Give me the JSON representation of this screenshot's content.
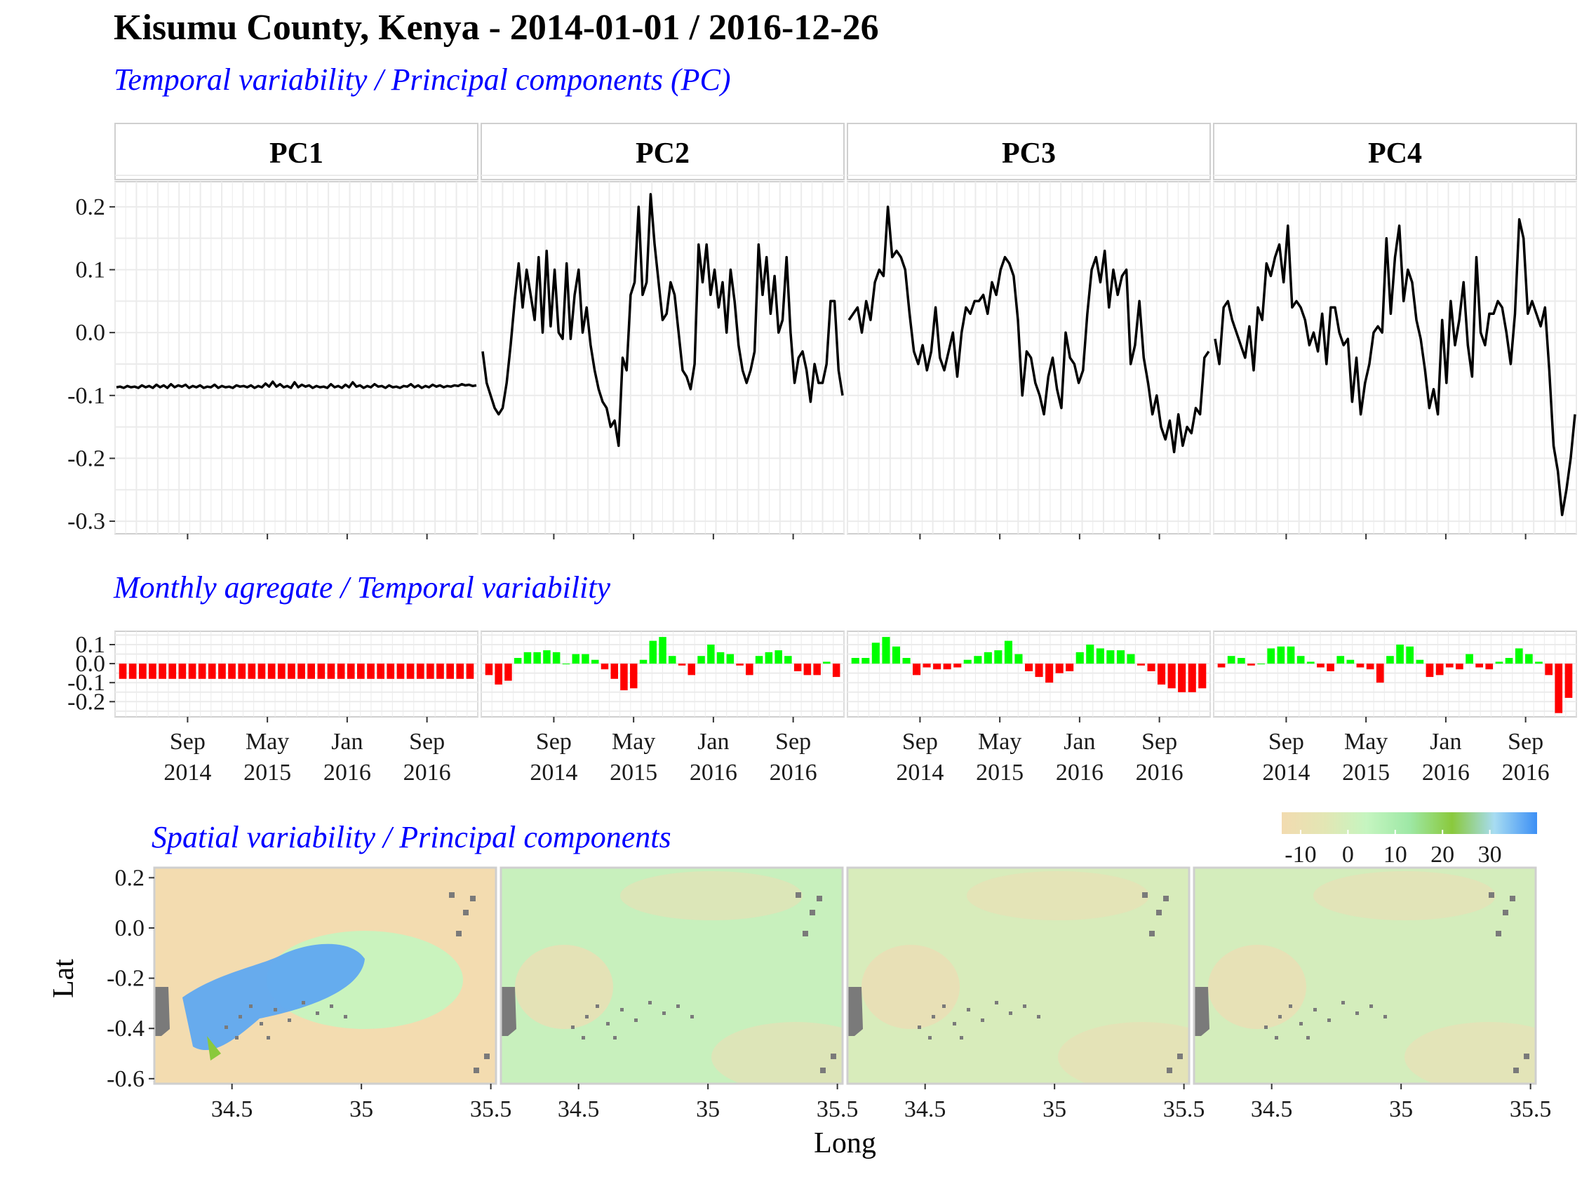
{
  "title": "Kisumu County, Kenya - 2014-01-01 / 2016-12-26",
  "subtitles": {
    "temporal": "Temporal variability / Principal components (PC)",
    "monthly": "Monthly agregate / Temporal variability",
    "spatial": "Spatial variability / Principal components"
  },
  "colors": {
    "line": "#000000",
    "bar_positive": "#00ff00",
    "bar_negative": "#ff0000",
    "subtitle": "#0000ff",
    "nodata": "#7a7a7a",
    "scale": [
      "#f2dbb0",
      "#e3e6b4",
      "#c5f5c0",
      "#9ee8a6",
      "#8ac93c",
      "#a7dcf2",
      "#3c8ff5"
    ]
  },
  "chart_data": [
    {
      "type": "line",
      "name": "temporal",
      "panels": [
        "PC1",
        "PC2",
        "PC3",
        "PC4"
      ],
      "ylim": [
        -0.32,
        0.24
      ],
      "yticks": [
        "0.2",
        "0.1",
        "0.0",
        "-0.1",
        "-0.2",
        "-0.3"
      ],
      "ytick_values": [
        0.2,
        0.1,
        0.0,
        -0.1,
        -0.2,
        -0.3
      ],
      "series": [
        {
          "panel": "PC1",
          "values": [
            -0.087,
            -0.086,
            -0.088,
            -0.085,
            -0.087,
            -0.086,
            -0.088,
            -0.084,
            -0.087,
            -0.085,
            -0.088,
            -0.083,
            -0.087,
            -0.084,
            -0.088,
            -0.082,
            -0.087,
            -0.084,
            -0.086,
            -0.083,
            -0.088,
            -0.085,
            -0.087,
            -0.084,
            -0.088,
            -0.086,
            -0.087,
            -0.083,
            -0.088,
            -0.085,
            -0.087,
            -0.086,
            -0.088,
            -0.084,
            -0.086,
            -0.085,
            -0.087,
            -0.084,
            -0.088,
            -0.085,
            -0.087,
            -0.081,
            -0.086,
            -0.078,
            -0.086,
            -0.082,
            -0.087,
            -0.085,
            -0.088,
            -0.079,
            -0.087,
            -0.083,
            -0.086,
            -0.084,
            -0.088,
            -0.085,
            -0.087,
            -0.086,
            -0.088,
            -0.082,
            -0.087,
            -0.085,
            -0.088,
            -0.083,
            -0.087,
            -0.079,
            -0.086,
            -0.084,
            -0.088,
            -0.085,
            -0.087,
            -0.082,
            -0.086,
            -0.085,
            -0.088,
            -0.084,
            -0.087,
            -0.086,
            -0.088,
            -0.085,
            -0.086,
            -0.082,
            -0.087,
            -0.084,
            -0.088,
            -0.085,
            -0.087,
            -0.083,
            -0.086,
            -0.084,
            -0.087,
            -0.085,
            -0.086,
            -0.084,
            -0.085,
            -0.082,
            -0.084,
            -0.083,
            -0.085,
            -0.084
          ]
        },
        {
          "panel": "PC2",
          "values": [
            -0.03,
            -0.08,
            -0.1,
            -0.12,
            -0.13,
            -0.12,
            -0.08,
            -0.02,
            0.05,
            0.11,
            0.04,
            0.1,
            0.06,
            0.02,
            0.12,
            0.0,
            0.13,
            0.01,
            0.1,
            0.0,
            -0.01,
            0.11,
            -0.01,
            0.06,
            0.1,
            0.0,
            0.04,
            -0.02,
            -0.06,
            -0.09,
            -0.11,
            -0.12,
            -0.15,
            -0.14,
            -0.18,
            -0.04,
            -0.06,
            0.06,
            0.08,
            0.2,
            0.06,
            0.08,
            0.22,
            0.14,
            0.08,
            0.02,
            0.03,
            0.08,
            0.06,
            0.0,
            -0.06,
            -0.07,
            -0.09,
            -0.05,
            0.14,
            0.08,
            0.14,
            0.06,
            0.1,
            0.04,
            0.08,
            0.0,
            0.1,
            0.05,
            -0.02,
            -0.06,
            -0.08,
            -0.06,
            -0.03,
            0.14,
            0.06,
            0.12,
            0.03,
            0.09,
            0.0,
            0.02,
            0.12,
            0.0,
            -0.08,
            -0.04,
            -0.03,
            -0.06,
            -0.11,
            -0.05,
            -0.08,
            -0.08,
            -0.05,
            0.05,
            0.05,
            -0.06,
            -0.1
          ]
        },
        {
          "panel": "PC3",
          "values": [
            0.02,
            0.03,
            0.04,
            0.0,
            0.05,
            0.02,
            0.08,
            0.1,
            0.09,
            0.2,
            0.12,
            0.13,
            0.12,
            0.1,
            0.03,
            -0.03,
            -0.05,
            -0.02,
            -0.06,
            -0.03,
            0.04,
            -0.04,
            -0.06,
            -0.03,
            0.0,
            -0.07,
            0.0,
            0.04,
            0.03,
            0.05,
            0.05,
            0.06,
            0.03,
            0.08,
            0.06,
            0.1,
            0.12,
            0.11,
            0.09,
            0.02,
            -0.1,
            -0.03,
            -0.04,
            -0.08,
            -0.1,
            -0.13,
            -0.07,
            -0.04,
            -0.09,
            -0.12,
            0.0,
            -0.04,
            -0.05,
            -0.08,
            -0.06,
            0.03,
            0.1,
            0.12,
            0.08,
            0.13,
            0.04,
            0.1,
            0.06,
            0.09,
            0.1,
            -0.05,
            -0.02,
            0.05,
            -0.04,
            -0.08,
            -0.13,
            -0.1,
            -0.15,
            -0.17,
            -0.14,
            -0.19,
            -0.13,
            -0.18,
            -0.15,
            -0.16,
            -0.12,
            -0.13,
            -0.04,
            -0.03
          ]
        },
        {
          "panel": "PC4",
          "values": [
            -0.01,
            -0.05,
            0.04,
            0.05,
            0.02,
            0.0,
            -0.02,
            -0.04,
            0.01,
            -0.06,
            0.04,
            0.02,
            0.11,
            0.09,
            0.12,
            0.14,
            0.08,
            0.17,
            0.04,
            0.05,
            0.04,
            0.02,
            -0.02,
            0.0,
            -0.03,
            0.03,
            -0.05,
            0.04,
            0.04,
            0.0,
            -0.02,
            -0.01,
            -0.11,
            -0.04,
            -0.13,
            -0.08,
            -0.05,
            0.0,
            0.01,
            0.0,
            0.15,
            0.03,
            0.12,
            0.17,
            0.05,
            0.1,
            0.08,
            0.02,
            -0.01,
            -0.06,
            -0.12,
            -0.09,
            -0.13,
            0.02,
            -0.08,
            0.05,
            -0.02,
            0.02,
            0.08,
            -0.02,
            -0.07,
            0.12,
            0.0,
            -0.02,
            0.03,
            0.03,
            0.05,
            0.04,
            0.0,
            -0.05,
            0.03,
            0.18,
            0.15,
            0.03,
            0.05,
            0.03,
            0.01,
            0.04,
            -0.06,
            -0.18,
            -0.22,
            -0.29,
            -0.25,
            -0.2,
            -0.13
          ]
        }
      ]
    },
    {
      "type": "bar",
      "name": "monthly",
      "panels": [
        "PC1",
        "PC2",
        "PC3",
        "PC4"
      ],
      "ylim": [
        -0.28,
        0.17
      ],
      "yticks": [
        "0.1",
        "0.0",
        "-0.1",
        "-0.2"
      ],
      "ytick_values": [
        0.1,
        0.0,
        -0.1,
        -0.2
      ],
      "xtick_labels": [
        [
          "Sep",
          "2014"
        ],
        [
          "May",
          "2015"
        ],
        [
          "Jan",
          "2016"
        ],
        [
          "Sep",
          "2016"
        ]
      ],
      "series": [
        {
          "panel": "PC1",
          "values": [
            -0.08,
            -0.08,
            -0.08,
            -0.08,
            -0.08,
            -0.08,
            -0.08,
            -0.08,
            -0.08,
            -0.08,
            -0.08,
            -0.08,
            -0.08,
            -0.08,
            -0.08,
            -0.08,
            -0.08,
            -0.08,
            -0.08,
            -0.08,
            -0.08,
            -0.08,
            -0.08,
            -0.08,
            -0.08,
            -0.08,
            -0.08,
            -0.08,
            -0.08,
            -0.08,
            -0.08,
            -0.08,
            -0.08,
            -0.08,
            -0.08,
            -0.08
          ]
        },
        {
          "panel": "PC2",
          "values": [
            -0.06,
            -0.11,
            -0.09,
            0.03,
            0.06,
            0.06,
            0.07,
            0.06,
            0.0,
            0.05,
            0.05,
            0.02,
            -0.03,
            -0.08,
            -0.14,
            -0.13,
            0.02,
            0.12,
            0.14,
            0.04,
            -0.01,
            -0.06,
            0.04,
            0.1,
            0.06,
            0.05,
            -0.01,
            -0.06,
            0.04,
            0.06,
            0.07,
            0.04,
            -0.04,
            -0.06,
            -0.06,
            0.01,
            -0.07
          ]
        },
        {
          "panel": "PC3",
          "values": [
            0.03,
            0.03,
            0.11,
            0.14,
            0.09,
            0.03,
            -0.06,
            -0.02,
            -0.03,
            -0.03,
            -0.02,
            0.02,
            0.04,
            0.06,
            0.07,
            0.12,
            0.05,
            -0.04,
            -0.07,
            -0.1,
            -0.05,
            -0.04,
            0.06,
            0.1,
            0.08,
            0.07,
            0.07,
            0.05,
            -0.01,
            -0.04,
            -0.11,
            -0.13,
            -0.15,
            -0.15,
            -0.13
          ]
        },
        {
          "panel": "PC4",
          "values": [
            -0.02,
            0.04,
            0.03,
            -0.01,
            0.0,
            0.08,
            0.09,
            0.09,
            0.04,
            0.01,
            -0.02,
            -0.04,
            0.04,
            0.02,
            -0.02,
            -0.03,
            -0.1,
            0.04,
            0.1,
            0.09,
            0.02,
            -0.07,
            -0.06,
            -0.02,
            -0.03,
            0.05,
            -0.02,
            -0.03,
            0.01,
            0.03,
            0.08,
            0.05,
            0.01,
            -0.06,
            -0.26,
            -0.18
          ]
        }
      ]
    },
    {
      "type": "heatmap",
      "name": "spatial",
      "panels": [
        "PC1",
        "PC2",
        "PC3",
        "PC4"
      ],
      "xlabel": "Long",
      "ylabel": "Lat",
      "xlim": [
        34.2,
        35.52
      ],
      "ylim": [
        -0.62,
        0.24
      ],
      "xticks": [
        "34.5",
        "35",
        "35.5"
      ],
      "xtick_values": [
        34.5,
        35.0,
        35.5
      ],
      "yticks": [
        "0.2",
        "0.0",
        "-0.2",
        "-0.4",
        "-0.6"
      ],
      "ytick_values": [
        0.2,
        0.0,
        -0.2,
        -0.4,
        -0.6
      ],
      "legend_ticks": [
        "-10",
        "0",
        "10",
        "20",
        "30"
      ],
      "legend_tick_values": [
        -10,
        0,
        10,
        20,
        30
      ],
      "legend_range": [
        -14,
        40
      ],
      "legend_position": "top-right"
    }
  ]
}
